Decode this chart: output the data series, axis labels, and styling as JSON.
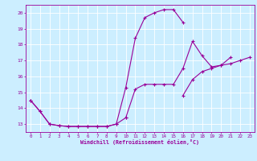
{
  "title": "",
  "xlabel": "Windchill (Refroidissement éolien,°C)",
  "xlim": [
    -0.5,
    23.5
  ],
  "ylim": [
    12.5,
    20.5
  ],
  "yticks": [
    13,
    14,
    15,
    16,
    17,
    18,
    19,
    20
  ],
  "xticks": [
    0,
    1,
    2,
    3,
    4,
    5,
    6,
    7,
    8,
    9,
    10,
    11,
    12,
    13,
    14,
    15,
    16,
    17,
    18,
    19,
    20,
    21,
    22,
    23
  ],
  "background_color": "#cceeff",
  "line_color": "#990099",
  "grid_color": "#ffffff",
  "series": [
    {
      "x": [
        0,
        1,
        2,
        3,
        4,
        5,
        6,
        7,
        8,
        9,
        10,
        11,
        12,
        13,
        14,
        15,
        16
      ],
      "y": [
        14.5,
        13.8,
        13.0,
        12.9,
        12.85,
        12.85,
        12.85,
        12.85,
        12.85,
        13.0,
        15.3,
        18.4,
        19.7,
        20.0,
        20.2,
        20.2,
        19.4
      ]
    },
    {
      "x": [
        10,
        11,
        12,
        13,
        14,
        15,
        16,
        17,
        18,
        19,
        20,
        21
      ],
      "y": [
        13.4,
        15.2,
        15.5,
        15.5,
        15.5,
        15.5,
        16.5,
        18.2,
        17.3,
        16.6,
        16.7,
        17.2
      ]
    },
    {
      "x": [
        16,
        17,
        18,
        19,
        20,
        21,
        22,
        23
      ],
      "y": [
        14.8,
        15.8,
        16.3,
        16.5,
        16.7,
        16.8,
        17.0,
        17.2
      ]
    },
    {
      "x": [
        0,
        1,
        2,
        3,
        4,
        5,
        6,
        7,
        8,
        9,
        10
      ],
      "y": [
        14.5,
        13.8,
        13.0,
        12.9,
        12.85,
        12.85,
        12.85,
        12.85,
        12.85,
        13.0,
        13.4
      ]
    }
  ]
}
